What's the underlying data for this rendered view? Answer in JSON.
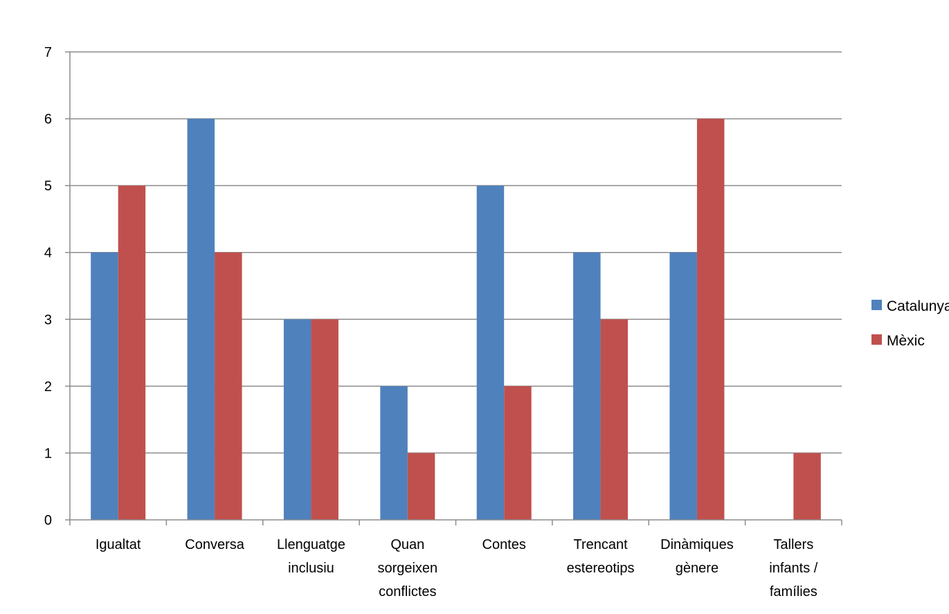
{
  "chart_data": {
    "type": "bar",
    "categories": [
      [
        "Igualtat"
      ],
      [
        "Conversa"
      ],
      [
        "Llenguatge",
        "inclusiu"
      ],
      [
        "Quan",
        "sorgeixen",
        "conflictes"
      ],
      [
        "Contes"
      ],
      [
        "Trencant",
        "estereotips"
      ],
      [
        "Dinàmiques",
        "gènere"
      ],
      [
        "Tallers",
        "infants /",
        "famílies"
      ]
    ],
    "series": [
      {
        "name": "Catalunya",
        "color": "#4F81BD",
        "values": [
          4,
          6,
          3,
          2,
          5,
          4,
          4,
          0
        ]
      },
      {
        "name": "Mèxic",
        "color": "#C0504D",
        "values": [
          5,
          4,
          3,
          1,
          2,
          3,
          6,
          1
        ]
      }
    ],
    "ylim": [
      0,
      7
    ],
    "yticks": [
      "0",
      "1",
      "2",
      "3",
      "4",
      "5",
      "6",
      "7"
    ],
    "grid": true,
    "legend_position": "right",
    "xlabel": "",
    "ylabel": "",
    "title": ""
  }
}
